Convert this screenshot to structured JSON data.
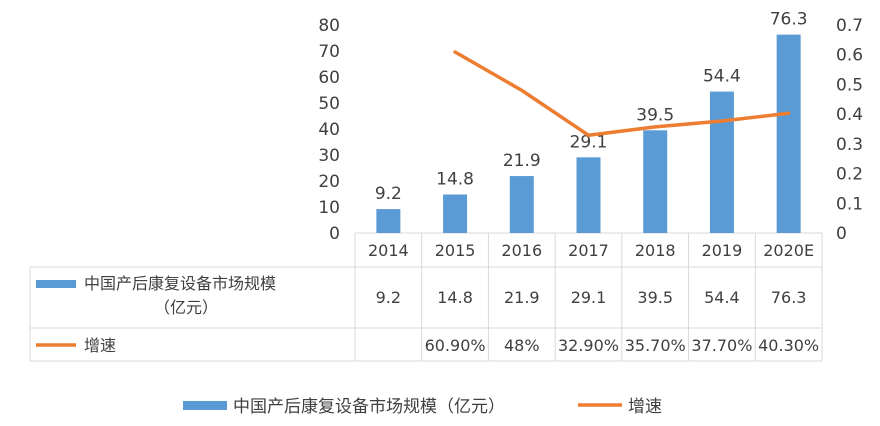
{
  "chart_data": {
    "type": "bar",
    "categories": [
      "2014",
      "2015",
      "2016",
      "2017",
      "2018",
      "2019",
      "2020E"
    ],
    "series": [
      {
        "name": "中国产后康复设备市场规模（亿元）",
        "type": "bar",
        "axis": "left",
        "values": [
          9.2,
          14.8,
          21.9,
          29.1,
          39.5,
          54.4,
          76.3
        ],
        "data_labels": [
          "9.2",
          "14.8",
          "21.9",
          "29.1",
          "39.5",
          "54.4",
          "76.3"
        ],
        "color": "#5B9BD5"
      },
      {
        "name": "增速",
        "type": "line",
        "axis": "right",
        "values": [
          null,
          0.609,
          0.48,
          0.329,
          0.357,
          0.377,
          0.403
        ],
        "color": "#ED7D31"
      }
    ],
    "y_left": {
      "min": 0,
      "max": 80,
      "step": 10,
      "ticks": [
        "0",
        "10",
        "20",
        "30",
        "40",
        "50",
        "60",
        "70",
        "80"
      ]
    },
    "y_right": {
      "min": 0,
      "max": 0.7,
      "step": 0.1,
      "ticks": [
        "0",
        "0.1",
        "0.2",
        "0.3",
        "0.4",
        "0.5",
        "0.6",
        "0.7"
      ]
    },
    "table": {
      "row1_label_line1": "中国产后康复设备市场规模",
      "row1_label_line2": "（亿元）",
      "row1_values": [
        "9.2",
        "14.8",
        "21.9",
        "29.1",
        "39.5",
        "54.4",
        "76.3"
      ],
      "row2_label": "增速",
      "row2_values": [
        "",
        "60.90%",
        "48%",
        "32.90%",
        "35.70%",
        "37.70%",
        "40.30%"
      ]
    },
    "legend": {
      "position": "bottom",
      "items": [
        "中国产后康复设备市场规模（亿元）",
        "增速"
      ]
    },
    "grid": false
  }
}
